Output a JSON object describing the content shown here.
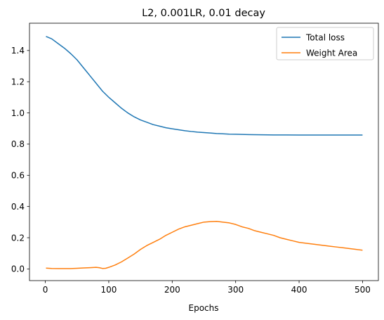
{
  "chart_data": {
    "type": "line",
    "title": "L2, 0.001LR, 0.01 decay",
    "xlabel": "Epochs",
    "ylabel": "",
    "xlim": [
      -25,
      525
    ],
    "ylim": [
      -0.075,
      1.575
    ],
    "xticks": [
      0,
      100,
      200,
      300,
      400,
      500
    ],
    "xtick_labels": [
      "0",
      "100",
      "200",
      "300",
      "400",
      "500"
    ],
    "yticks": [
      0.0,
      0.2,
      0.4,
      0.6,
      0.8,
      1.0,
      1.2,
      1.4
    ],
    "ytick_labels": [
      "0.0",
      "0.2",
      "0.4",
      "0.6",
      "0.8",
      "1.0",
      "1.2",
      "1.4"
    ],
    "grid": false,
    "legend_position": "top-right",
    "series": [
      {
        "name": "Total loss",
        "color": "#1f77b4",
        "x": [
          1,
          10,
          20,
          30,
          40,
          50,
          60,
          70,
          80,
          90,
          100,
          110,
          120,
          130,
          140,
          150,
          160,
          170,
          180,
          190,
          200,
          210,
          220,
          230,
          240,
          250,
          260,
          270,
          280,
          290,
          300,
          320,
          340,
          360,
          380,
          400,
          420,
          440,
          460,
          480,
          500
        ],
        "y": [
          1.49,
          1.475,
          1.445,
          1.415,
          1.38,
          1.34,
          1.29,
          1.24,
          1.19,
          1.14,
          1.1,
          1.065,
          1.03,
          1.0,
          0.975,
          0.955,
          0.94,
          0.925,
          0.915,
          0.905,
          0.898,
          0.892,
          0.886,
          0.881,
          0.877,
          0.874,
          0.871,
          0.868,
          0.866,
          0.864,
          0.863,
          0.861,
          0.86,
          0.859,
          0.859,
          0.858,
          0.858,
          0.858,
          0.858,
          0.858,
          0.858
        ]
      },
      {
        "name": "Weight Area",
        "color": "#ff7f0e",
        "x": [
          1,
          10,
          20,
          30,
          40,
          50,
          60,
          70,
          80,
          85,
          90,
          95,
          100,
          110,
          120,
          130,
          140,
          150,
          160,
          170,
          180,
          190,
          200,
          210,
          220,
          230,
          240,
          250,
          260,
          270,
          280,
          290,
          300,
          310,
          320,
          330,
          340,
          350,
          360,
          370,
          380,
          390,
          400,
          410,
          420,
          430,
          440,
          450,
          460,
          470,
          480,
          490,
          500
        ],
        "y": [
          0.005,
          0.003,
          0.002,
          0.002,
          0.002,
          0.004,
          0.006,
          0.008,
          0.01,
          0.008,
          0.003,
          0.004,
          0.01,
          0.025,
          0.045,
          0.07,
          0.095,
          0.125,
          0.15,
          0.17,
          0.19,
          0.215,
          0.235,
          0.255,
          0.27,
          0.28,
          0.29,
          0.3,
          0.303,
          0.305,
          0.3,
          0.295,
          0.285,
          0.27,
          0.26,
          0.245,
          0.235,
          0.225,
          0.215,
          0.2,
          0.19,
          0.18,
          0.17,
          0.165,
          0.16,
          0.155,
          0.15,
          0.145,
          0.14,
          0.135,
          0.13,
          0.125,
          0.12
        ]
      }
    ]
  }
}
